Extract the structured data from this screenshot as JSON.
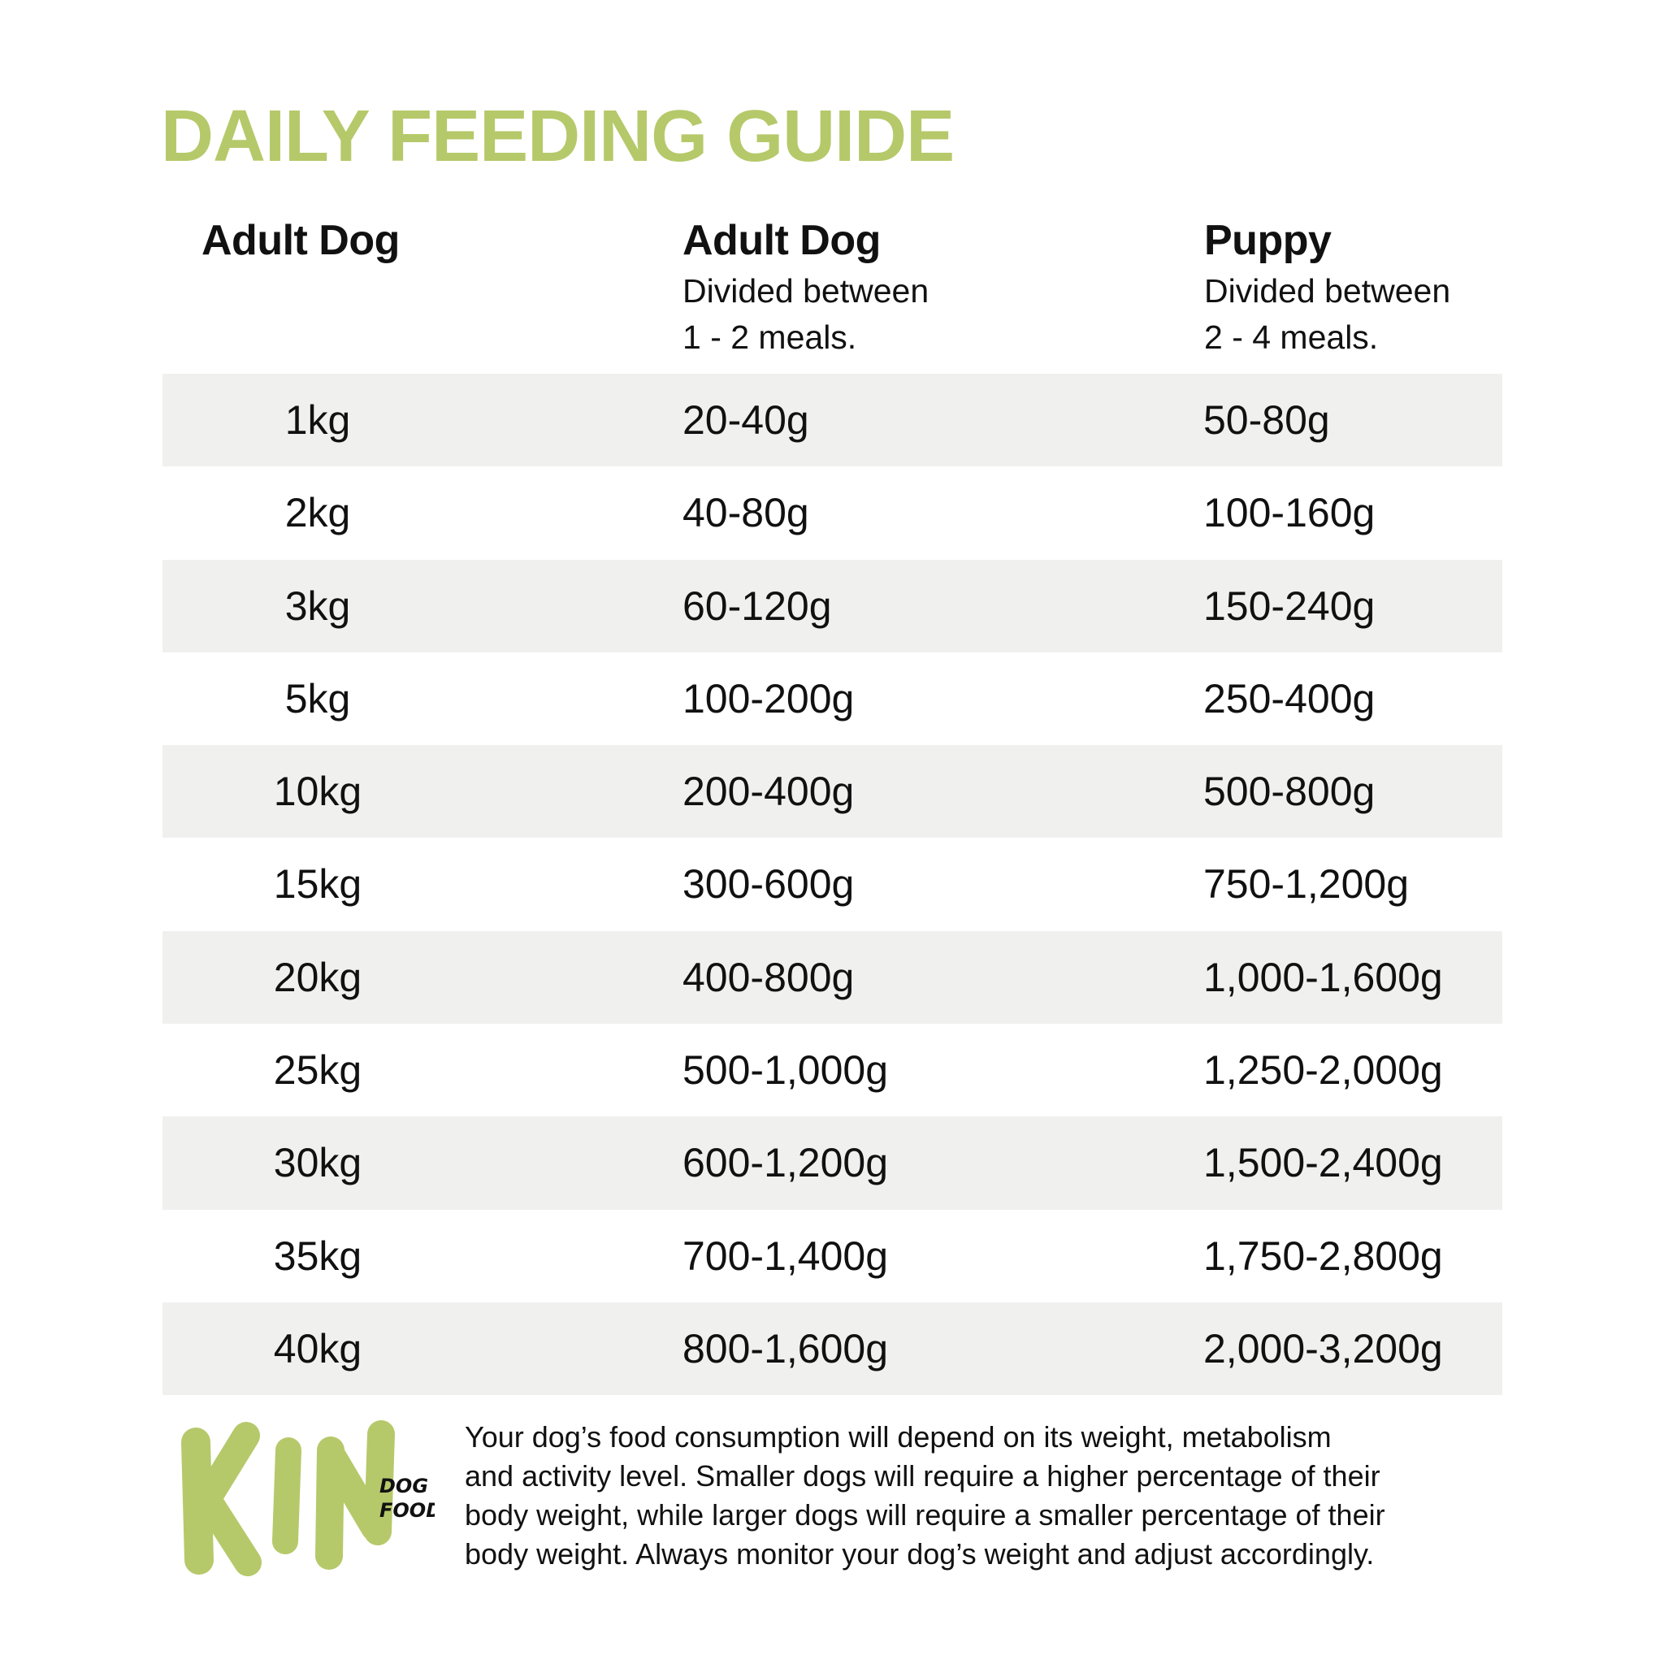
{
  "title": "DAILY FEEDING GUIDE",
  "headers": [
    {
      "title": "Adult Dog",
      "subtitle_lines": []
    },
    {
      "title": "Adult Dog",
      "subtitle_lines": [
        "Divided between",
        "1 - 2 meals."
      ]
    },
    {
      "title": "Puppy",
      "subtitle_lines": [
        "Divided between",
        "2 - 4 meals."
      ]
    }
  ],
  "rows": [
    [
      "1kg",
      "20-40g",
      "50-80g"
    ],
    [
      "2kg",
      "40-80g",
      "100-160g"
    ],
    [
      "3kg",
      "60-120g",
      "150-240g"
    ],
    [
      "5kg",
      "100-200g",
      "250-400g"
    ],
    [
      "10kg",
      "200-400g",
      "500-800g"
    ],
    [
      "15kg",
      "300-600g",
      "750-1,200g"
    ],
    [
      "20kg",
      "400-800g",
      "1,000-1,600g"
    ],
    [
      "25kg",
      "500-1,000g",
      "1,250-2,000g"
    ],
    [
      "30kg",
      "600-1,200g",
      "1,500-2,400g"
    ],
    [
      "35kg",
      "700-1,400g",
      "1,750-2,800g"
    ],
    [
      "40kg",
      "800-1,600g",
      "2,000-3,200g"
    ]
  ],
  "logo": {
    "brand": "KIN",
    "tagline_lines": [
      "DOG",
      "FOOD"
    ]
  },
  "note_lines": [
    "Your dog’s food consumption will depend on its weight, metabolism",
    "and activity level.  Smaller dogs will require a higher percentage of their",
    "body weight, while larger dogs will require a smaller percentage of their",
    "body weight. Always monitor your dog’s weight and adjust accordingly."
  ],
  "colors": {
    "accent": "#b5c96a",
    "row_shade": "#f0f1ef",
    "text": "#111111"
  }
}
